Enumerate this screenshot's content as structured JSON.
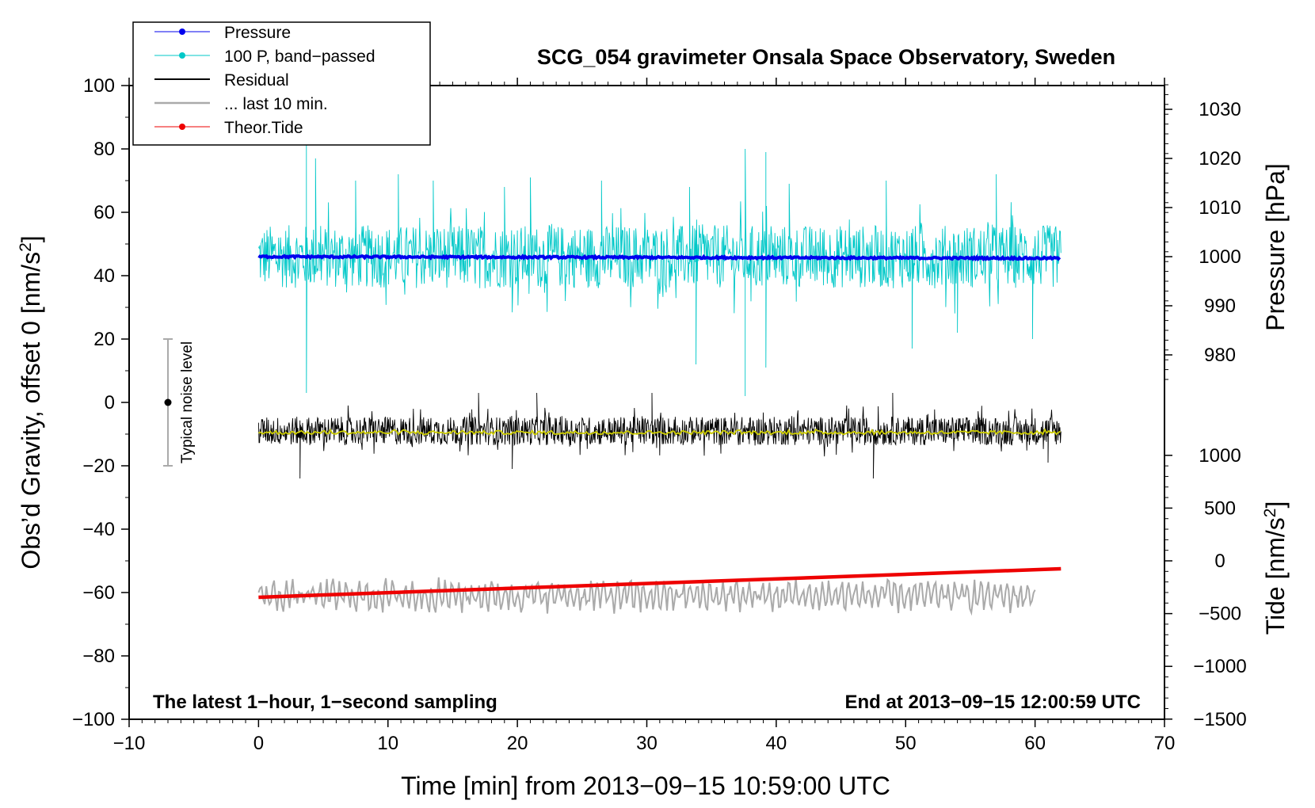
{
  "chart_data": {
    "type": "line",
    "title": "SCG_054 gravimeter Onsala Space Observatory, Sweden",
    "xlabel": "Time [min] from 2013−09−15 10:59:00 UTC",
    "ylabel_left": "Obs’d Gravity, offset 0 [nm/s²]",
    "ylabel_left_main": "Obs’d Gravity, offset 0 [nm/s",
    "ylabel_left_sup": "2",
    "ylabel_left_end": "]",
    "ylabel_pressure": "Pressure [hPa]",
    "ylabel_tide_main": "Tide [nm/s",
    "ylabel_tide_sup": "2",
    "ylabel_tide_end": "]",
    "xlim": [
      -10,
      70
    ],
    "ylim_left": [
      -100,
      100
    ],
    "x_ticks": [
      -10,
      0,
      10,
      20,
      30,
      40,
      50,
      60,
      70
    ],
    "x_tick_labels": [
      "−10",
      "0",
      "10",
      "20",
      "30",
      "40",
      "50",
      "60",
      "70"
    ],
    "y_ticks_left": [
      -100,
      -80,
      -60,
      -40,
      -20,
      0,
      20,
      40,
      60,
      80,
      100
    ],
    "y_tick_labels_left": [
      "−100",
      "−80",
      "−60",
      "−40",
      "−20",
      "0",
      "20",
      "40",
      "60",
      "80",
      "100"
    ],
    "pressure_axis": {
      "ticks": [
        980,
        990,
        1000,
        1010,
        1020,
        1030
      ],
      "tick_labels": [
        "980",
        "990",
        "1000",
        "1010",
        "1020",
        "1030"
      ],
      "left_value_at_1000": 46,
      "left_units_per_hpa": 1.55
    },
    "tide_axis": {
      "ticks": [
        -1500,
        -1000,
        -500,
        0,
        500,
        1000
      ],
      "tick_labels": [
        "−1500",
        "−1000",
        "−500",
        "0",
        "500",
        "1000"
      ],
      "left_value_at_0": -50,
      "left_units_per_nms2": 0.0333
    },
    "legend": [
      {
        "label": "Pressure",
        "color": "#0000ee",
        "marker": true
      },
      {
        "label": "100 P, band−passed",
        "color": "#00c8c8",
        "marker": true
      },
      {
        "label": "Residual",
        "color": "#000000",
        "marker": false
      },
      {
        "label": "... last 10 min.",
        "color": "#aaaaaa",
        "marker": false
      },
      {
        "label": "Theor.Tide",
        "color": "#ee0000",
        "marker": true
      }
    ],
    "series": [
      {
        "name": "Pressure",
        "color": "#0000ee",
        "x_range": [
          0,
          62
        ],
        "y_left_start": 46,
        "y_left_end": 45.5,
        "noise": 0.6
      },
      {
        "name": "100 P, band−passed",
        "color": "#00c8c8",
        "x_range": [
          0,
          62
        ],
        "center": 46,
        "noise": 10,
        "spikes": [
          [
            3.7,
            82
          ],
          [
            3.7,
            3
          ],
          [
            4.4,
            77
          ],
          [
            7.5,
            70
          ],
          [
            10.8,
            72
          ],
          [
            13.5,
            70
          ],
          [
            19.0,
            68
          ],
          [
            21.0,
            71
          ],
          [
            26.5,
            70
          ],
          [
            33.8,
            12
          ],
          [
            33.3,
            68
          ],
          [
            37.6,
            80
          ],
          [
            37.6,
            2
          ],
          [
            39.2,
            79
          ],
          [
            39.2,
            11
          ],
          [
            41.0,
            69
          ],
          [
            48.5,
            70
          ],
          [
            50.5,
            17
          ],
          [
            54.0,
            22
          ],
          [
            57.0,
            72
          ],
          [
            59.8,
            20
          ]
        ]
      },
      {
        "name": "Residual",
        "color": "#000000",
        "x_range": [
          0,
          62
        ],
        "center": -9,
        "noise": 4.5,
        "spikes": [
          [
            3.2,
            -24
          ],
          [
            17.0,
            3
          ],
          [
            19.6,
            -21
          ],
          [
            21.5,
            3
          ],
          [
            30.4,
            3
          ],
          [
            47.5,
            -24
          ],
          [
            49.0,
            3
          ],
          [
            61.0,
            -19
          ]
        ]
      },
      {
        "name": "Residual smoothed",
        "color": "#cccc00",
        "x_range": [
          0,
          62
        ],
        "center": -9.5,
        "noise": 0.6
      },
      {
        "name": "... last 10 min.",
        "color": "#aaaaaa",
        "x_range": [
          0,
          60
        ],
        "center": -61,
        "noise": 4.5
      },
      {
        "name": "Theor.Tide",
        "color": "#ee0000",
        "x_range": [
          0,
          62
        ],
        "y_left_start": -61.5,
        "y_left_end": -52.5
      }
    ],
    "noise_level": {
      "x": -7,
      "y": 0,
      "error": 20,
      "label": "Typical noise level"
    },
    "annotations": {
      "bottom_left": "The latest 1−hour, 1−second sampling",
      "bottom_right": "End at 2013−09−15 12:00:59 UTC"
    }
  }
}
